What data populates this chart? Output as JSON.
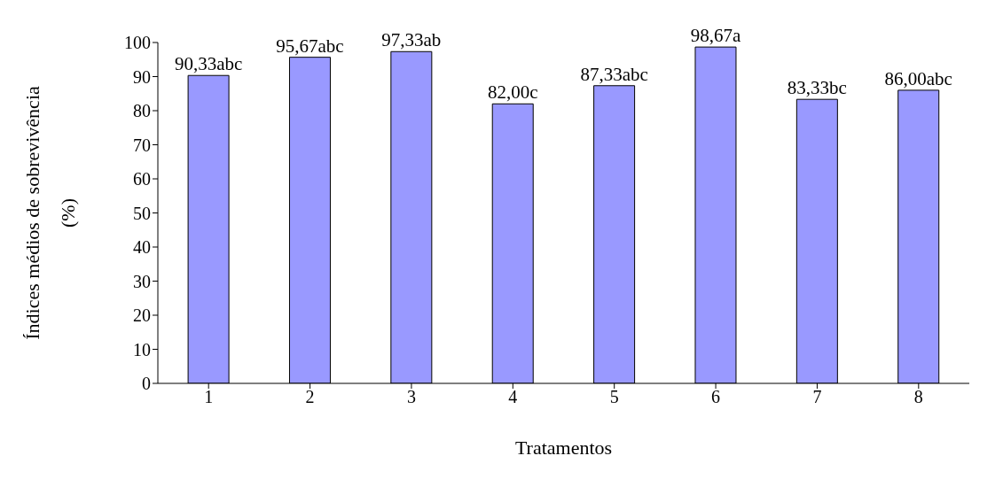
{
  "chart_data": {
    "type": "bar",
    "xlabel": "Tratamentos",
    "ylabel": "Índices médios de sobrevivência (%)",
    "categories": [
      "1",
      "2",
      "3",
      "4",
      "5",
      "6",
      "7",
      "8"
    ],
    "values": [
      90.33,
      95.67,
      97.33,
      82.0,
      87.33,
      98.67,
      83.33,
      86.0
    ],
    "value_labels": [
      "90,33abc",
      "95,67abc",
      "97,33ab",
      "82,00c",
      "87,33abc",
      "98,67a",
      "83,33bc",
      "86,00abc"
    ],
    "color": "#9999ff",
    "ylim": [
      0,
      100
    ],
    "yticks": [
      0,
      10,
      20,
      30,
      40,
      50,
      60,
      70,
      80,
      90,
      100
    ],
    "grid": false,
    "legend": false
  }
}
